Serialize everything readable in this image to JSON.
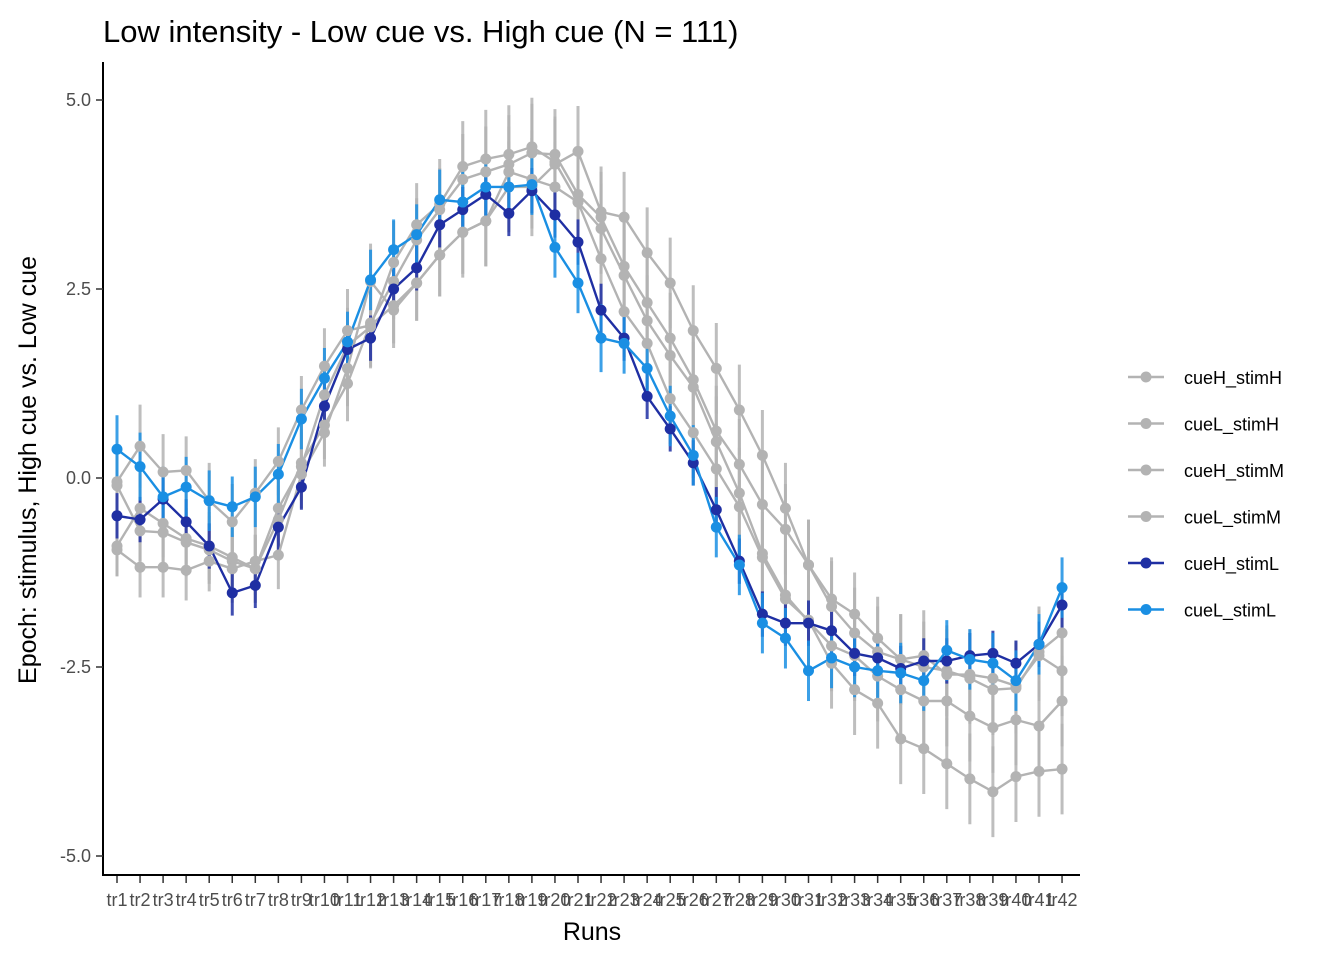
{
  "chart_data": {
    "type": "line",
    "title": "Low intensity - Low cue vs. High cue (N = 111)",
    "xlabel": "Runs",
    "ylabel": "Epoch: stimulus, High cue vs. Low cue",
    "ylim": [
      -5.3,
      5.5
    ],
    "yticks": [
      5.0,
      2.5,
      0.0,
      -2.5,
      -5.0
    ],
    "ytick_labels": [
      "5.0",
      "2.5",
      "0.0",
      "-2.5",
      "-5.0"
    ],
    "categories": [
      "tr1",
      "tr2",
      "tr3",
      "tr4",
      "tr5",
      "tr6",
      "tr7",
      "tr8",
      "tr9",
      "tr10",
      "tr11",
      "tr12",
      "tr13",
      "tr14",
      "tr15",
      "tr16",
      "tr17",
      "tr18",
      "tr19",
      "tr20",
      "tr21",
      "tr22",
      "tr23",
      "tr24",
      "tr25",
      "tr26",
      "tr27",
      "tr28",
      "tr29",
      "tr30",
      "tr31",
      "tr32",
      "tr33",
      "tr34",
      "tr35",
      "tr36",
      "tr37",
      "tr38",
      "tr39",
      "tr40",
      "tr41",
      "tr42"
    ],
    "grid": false,
    "legend": "right",
    "series": [
      {
        "name": "cueH_stimH",
        "color": "#b3b3b3",
        "values": [
          -0.05,
          0.42,
          0.08,
          0.1,
          -0.3,
          -0.58,
          -0.2,
          0.22,
          0.9,
          1.48,
          1.95,
          2.02,
          2.28,
          2.58,
          2.95,
          3.25,
          3.4,
          3.85,
          3.85,
          4.15,
          4.32,
          3.52,
          3.45,
          2.98,
          2.58,
          1.95,
          1.45,
          0.9,
          0.3,
          -0.4,
          -1.15,
          -1.6,
          -1.8,
          -2.12,
          -2.4,
          -2.35,
          -2.6,
          -2.6,
          -2.65,
          -2.75,
          -2.35,
          -2.55
        ],
        "err": [
          0.4,
          0.55,
          0.5,
          0.45,
          0.5,
          0.5,
          0.45,
          0.45,
          0.45,
          0.5,
          0.55,
          0.55,
          0.5,
          0.5,
          0.55,
          0.6,
          0.6,
          0.6,
          0.65,
          0.6,
          0.6,
          0.6,
          0.6,
          0.6,
          0.6,
          0.6,
          0.6,
          0.6,
          0.6,
          0.6,
          0.6,
          0.55,
          0.55,
          0.55,
          0.6,
          0.6,
          0.6,
          0.6,
          0.6,
          0.6,
          0.6,
          0.6
        ]
      },
      {
        "name": "cueL_stimH",
        "color": "#b3b3b3",
        "values": [
          -0.9,
          -0.4,
          -0.6,
          -0.8,
          -0.9,
          -1.05,
          -1.2,
          -0.55,
          0.2,
          0.7,
          1.25,
          2.05,
          2.6,
          3.15,
          3.55,
          3.95,
          4.05,
          4.15,
          4.3,
          4.28,
          3.75,
          3.45,
          2.8,
          2.32,
          1.85,
          1.3,
          0.62,
          0.18,
          -0.35,
          -0.68,
          -1.15,
          -1.7,
          -2.05,
          -2.3,
          -2.4,
          -2.5,
          -2.55,
          -2.65,
          -2.8,
          -2.78,
          -2.3,
          -2.05
        ],
        "err": [
          0.4,
          0.45,
          0.45,
          0.45,
          0.45,
          0.45,
          0.45,
          0.45,
          0.45,
          0.45,
          0.5,
          0.5,
          0.5,
          0.55,
          0.55,
          0.6,
          0.6,
          0.65,
          0.65,
          0.6,
          0.6,
          0.6,
          0.6,
          0.6,
          0.6,
          0.6,
          0.6,
          0.6,
          0.6,
          0.6,
          0.6,
          0.6,
          0.6,
          0.6,
          0.6,
          0.6,
          0.6,
          0.6,
          0.6,
          0.6,
          0.6,
          0.6
        ]
      },
      {
        "name": "cueH_stimM",
        "color": "#b3b3b3",
        "values": [
          -0.1,
          -0.7,
          -0.72,
          -0.85,
          -0.95,
          -1.1,
          -1.2,
          -0.4,
          0.15,
          1.1,
          1.75,
          2.0,
          2.85,
          3.35,
          3.62,
          4.12,
          4.22,
          4.28,
          4.38,
          4.18,
          3.65,
          3.3,
          2.68,
          2.08,
          1.62,
          1.2,
          0.48,
          -0.2,
          -1.0,
          -1.55,
          -1.9,
          -2.22,
          -2.35,
          -2.62,
          -2.8,
          -2.95,
          -2.95,
          -3.15,
          -3.3,
          -3.2,
          -3.28,
          -2.95
        ],
        "err": [
          0.4,
          0.4,
          0.4,
          0.45,
          0.45,
          0.45,
          0.45,
          0.45,
          0.45,
          0.5,
          0.5,
          0.55,
          0.55,
          0.55,
          0.6,
          0.6,
          0.65,
          0.65,
          0.65,
          0.6,
          0.6,
          0.6,
          0.6,
          0.6,
          0.6,
          0.6,
          0.6,
          0.6,
          0.6,
          0.6,
          0.6,
          0.6,
          0.6,
          0.6,
          0.6,
          0.6,
          0.6,
          0.6,
          0.6,
          0.6,
          0.6,
          0.6
        ]
      },
      {
        "name": "cueL_stimM",
        "color": "#b3b3b3",
        "values": [
          -0.95,
          -1.18,
          -1.18,
          -1.22,
          -1.1,
          -1.2,
          -1.1,
          -1.02,
          0.05,
          0.6,
          1.45,
          2.6,
          2.22,
          2.58,
          2.95,
          3.25,
          3.4,
          4.05,
          3.95,
          3.85,
          3.65,
          2.9,
          2.2,
          1.78,
          1.05,
          0.6,
          0.12,
          -0.38,
          -1.05,
          -1.6,
          -1.88,
          -2.45,
          -2.8,
          -2.98,
          -3.45,
          -3.58,
          -3.78,
          -3.98,
          -4.15,
          -3.95,
          -3.88,
          -3.85
        ],
        "err": [
          0.35,
          0.4,
          0.4,
          0.4,
          0.4,
          0.45,
          0.45,
          0.45,
          0.45,
          0.45,
          0.5,
          0.5,
          0.5,
          0.5,
          0.55,
          0.55,
          0.6,
          0.6,
          0.65,
          0.6,
          0.6,
          0.6,
          0.6,
          0.6,
          0.6,
          0.6,
          0.6,
          0.6,
          0.6,
          0.6,
          0.6,
          0.6,
          0.6,
          0.6,
          0.6,
          0.6,
          0.6,
          0.6,
          0.6,
          0.6,
          0.6,
          0.6
        ]
      },
      {
        "name": "cueH_stimL",
        "color": "#1f2fa3",
        "values": [
          -0.5,
          -0.55,
          -0.28,
          -0.58,
          -0.9,
          -1.52,
          -1.42,
          -0.65,
          -0.12,
          0.95,
          1.7,
          1.85,
          2.5,
          2.78,
          3.35,
          3.55,
          3.75,
          3.5,
          3.8,
          3.48,
          3.12,
          2.22,
          1.85,
          1.08,
          0.65,
          0.2,
          -0.42,
          -1.1,
          -1.8,
          -1.92,
          -1.92,
          -2.02,
          -2.32,
          -2.38,
          -2.52,
          -2.42,
          -2.42,
          -2.35,
          -2.32,
          -2.45,
          -2.2,
          -1.68
        ],
        "err": [
          0.3,
          0.3,
          0.3,
          0.3,
          0.3,
          0.3,
          0.3,
          0.3,
          0.3,
          0.3,
          0.3,
          0.3,
          0.3,
          0.3,
          0.3,
          0.3,
          0.3,
          0.3,
          0.3,
          0.3,
          0.3,
          0.35,
          0.3,
          0.3,
          0.3,
          0.3,
          0.3,
          0.3,
          0.3,
          0.3,
          0.3,
          0.3,
          0.3,
          0.3,
          0.3,
          0.3,
          0.3,
          0.3,
          0.3,
          0.3,
          0.3,
          0.3
        ]
      },
      {
        "name": "cueL_stimL",
        "color": "#1a8fe3",
        "values": [
          0.38,
          0.15,
          -0.25,
          -0.12,
          -0.3,
          -0.38,
          -0.25,
          0.05,
          0.78,
          1.32,
          1.8,
          2.62,
          3.02,
          3.22,
          3.68,
          3.65,
          3.85,
          3.85,
          3.88,
          3.05,
          2.58,
          1.85,
          1.78,
          1.45,
          0.82,
          0.3,
          -0.65,
          -1.15,
          -1.92,
          -2.12,
          -2.55,
          -2.38,
          -2.5,
          -2.55,
          -2.58,
          -2.68,
          -2.28,
          -2.4,
          -2.45,
          -2.68,
          -2.2,
          -1.45
        ],
        "err": [
          0.45,
          0.45,
          0.4,
          0.4,
          0.4,
          0.4,
          0.4,
          0.4,
          0.4,
          0.4,
          0.4,
          0.4,
          0.4,
          0.4,
          0.4,
          0.4,
          0.4,
          0.4,
          0.4,
          0.4,
          0.4,
          0.45,
          0.4,
          0.4,
          0.4,
          0.4,
          0.4,
          0.4,
          0.4,
          0.4,
          0.4,
          0.4,
          0.4,
          0.4,
          0.4,
          0.4,
          0.4,
          0.4,
          0.4,
          0.4,
          0.4,
          0.4
        ]
      }
    ]
  }
}
